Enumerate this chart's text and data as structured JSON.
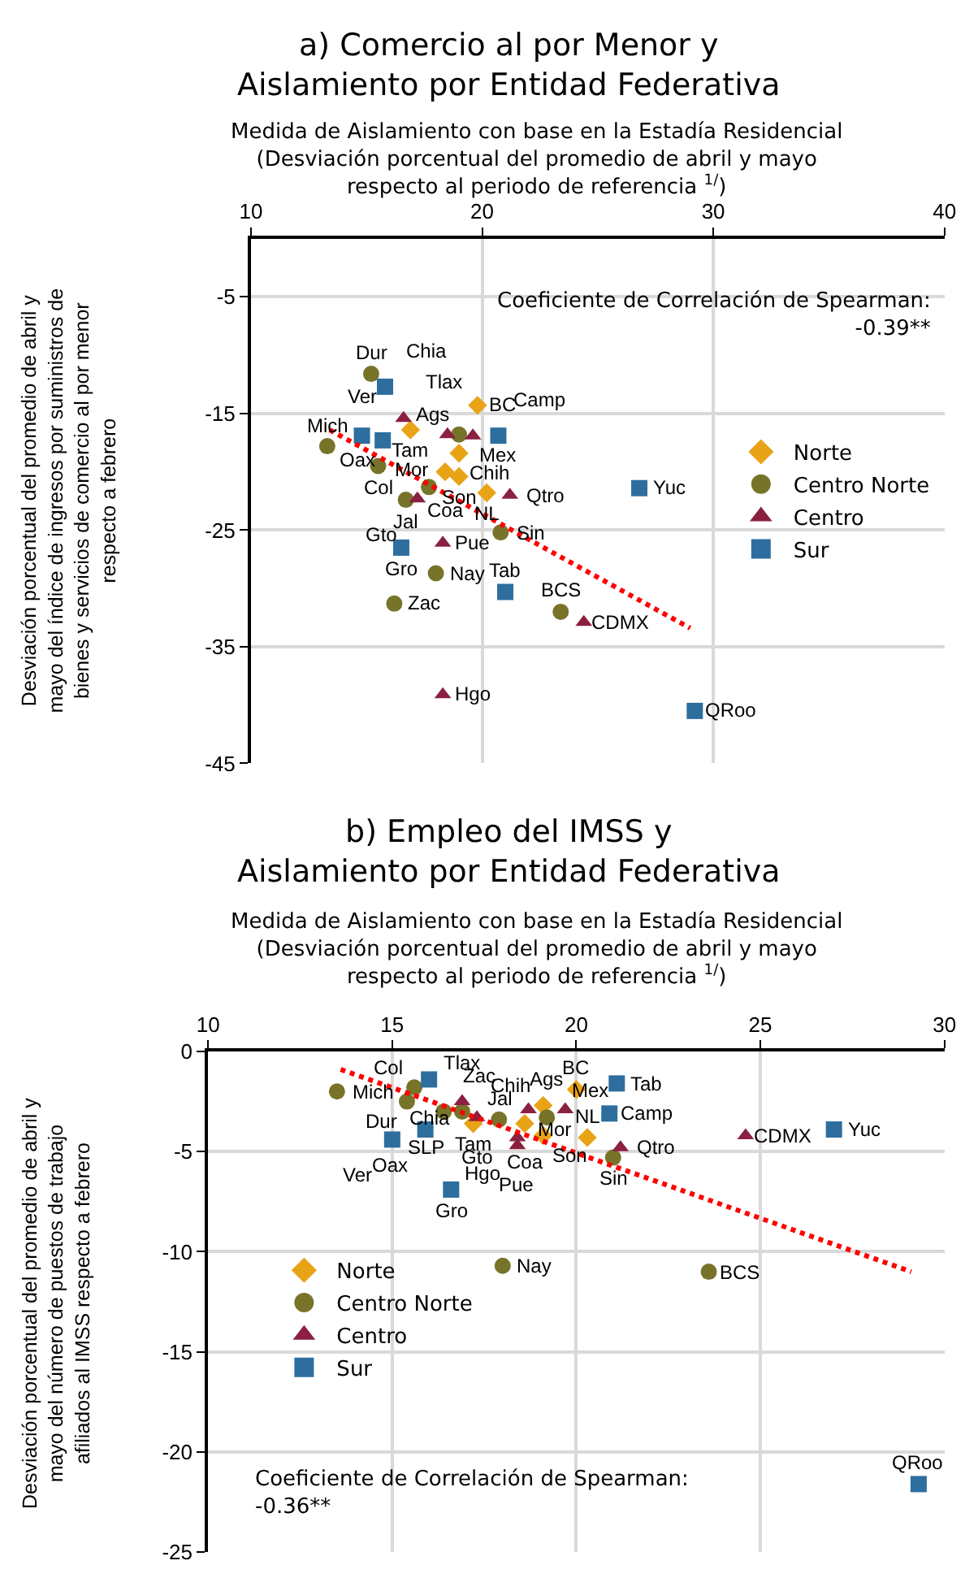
{
  "chart_data": [
    {
      "type": "scatter",
      "title": "a) Comercio al por Menor y\nAislamiento por Entidad Federativa",
      "xlabel": "Medida de Aislamiento con base en la Estadía Residencial\n(Desviación porcentual del promedio de abril y mayo\nrespecto al periodo de referencia $^{1/}$)",
      "ylabel": "Desviación porcentual del promedio de abril y\nmayo del índice de ingresos por suministros de\nbienes y servicios de comercio al por menor\nrespecto a febrero",
      "xlim": [
        10,
        40
      ],
      "xticks": [
        10,
        20,
        30,
        40
      ],
      "ylim": [
        -45,
        0
      ],
      "yticks": [
        -5,
        -15,
        -25,
        -35,
        -45
      ],
      "grid": true,
      "legend": "right",
      "series": [
        {
          "name": "Norte",
          "color": "#e8a317",
          "marker": "diamond",
          "x": [
            19.8,
            16.9,
            19.0,
            18.4,
            19.0,
            20.2
          ],
          "values": [
            -14.3,
            -16.4,
            -18.4,
            -20.0,
            -20.4,
            -21.8
          ]
        },
        {
          "name": "Centro Norte",
          "color": "#77742a",
          "marker": "circle",
          "x": [
            15.2,
            19.0,
            13.3,
            15.5,
            16.7,
            17.7,
            20.8,
            18.0,
            16.2,
            23.4
          ],
          "values": [
            -11.6,
            -16.8,
            -17.8,
            -19.5,
            -22.4,
            -21.3,
            -25.2,
            -28.7,
            -31.3,
            -32.0
          ]
        },
        {
          "name": "Centro",
          "color": "#8b2040",
          "marker": "triangle",
          "x": [
            16.6,
            18.5,
            19.6,
            17.2,
            21.2,
            18.3,
            18.3,
            24.4
          ],
          "values": [
            -15.4,
            -16.8,
            -16.9,
            -22.3,
            -22.0,
            -26.1,
            -39.1,
            -32.9
          ]
        },
        {
          "name": "Sur",
          "color": "#2e6e9e",
          "marker": "square",
          "x": [
            15.8,
            15.7,
            14.8,
            20.7,
            16.5,
            21.0,
            26.8,
            29.2
          ],
          "values": [
            -12.7,
            -17.3,
            -16.9,
            -16.9,
            -26.5,
            -30.3,
            -21.4,
            -40.5
          ]
        },
        {
          "type": "line",
          "color": "#ff0000",
          "line_style": "dotted",
          "marker": "none",
          "x": [
            13.4,
            29.0
          ],
          "values": [
            -16.4,
            -33.4
          ]
        }
      ],
      "annotations": [
        "Coeficiente de Correlación de Spearman:\n-0.39**",
        {
          "text": "BC",
          "x": 19.8,
          "y": -14.3
        },
        {
          "text": "Tam",
          "x": 16.9,
          "y": -16.4
        },
        {
          "text": "Chih",
          "x": 19.0,
          "y": -18.4
        },
        {
          "text": "Coa",
          "x": 18.4,
          "y": -20.0
        },
        {
          "text": "Son",
          "x": 19.0,
          "y": -20.4
        },
        {
          "text": "NL",
          "x": 20.2,
          "y": -21.8
        },
        {
          "text": "Dur",
          "x": 15.2,
          "y": -11.6
        },
        {
          "text": "Ags",
          "x": 19.0,
          "y": -16.8
        },
        {
          "text": "Mich",
          "x": 13.3,
          "y": -17.8
        },
        {
          "text": "Col",
          "x": 15.5,
          "y": -19.5
        },
        {
          "text": "Jal",
          "x": 16.7,
          "y": -22.4
        },
        {
          "text": "Sin",
          "x": 20.8,
          "y": -25.2
        },
        {
          "text": "Nay",
          "x": 18.0,
          "y": -28.7
        },
        {
          "text": "Zac",
          "x": 16.2,
          "y": -31.3
        },
        {
          "text": "BCS",
          "x": 23.4,
          "y": -32.0
        },
        {
          "text": "Tlax",
          "x": 16.6,
          "y": -15.4
        },
        {
          "text": "Mor",
          "x": 18.5,
          "y": -16.8
        },
        {
          "text": "Mex",
          "x": 19.6,
          "y": -16.9
        },
        {
          "text": "Gto",
          "x": 17.2,
          "y": -22.3
        },
        {
          "text": "Qtro",
          "x": 21.2,
          "y": -22.0
        },
        {
          "text": "Pue",
          "x": 18.3,
          "y": -26.1
        },
        {
          "text": "Hgo",
          "x": 18.3,
          "y": -39.1
        },
        {
          "text": "CDMX",
          "x": 24.4,
          "y": -32.9
        },
        {
          "text": "Chia",
          "x": 15.8,
          "y": -12.7
        },
        {
          "text": "Oax",
          "x": 15.7,
          "y": -17.3
        },
        {
          "text": "Ver",
          "x": 14.8,
          "y": -16.9
        },
        {
          "text": "Camp",
          "x": 20.7,
          "y": -16.9
        },
        {
          "text": "Gro",
          "x": 16.5,
          "y": -26.5
        },
        {
          "text": "Tab",
          "x": 21.0,
          "y": -30.3
        },
        {
          "text": "Yuc",
          "x": 26.8,
          "y": -21.4
        },
        {
          "text": "QRoo",
          "x": 29.2,
          "y": -40.5
        }
      ]
    },
    {
      "type": "scatter",
      "title": "b) Empleo del IMSS y\nAislamiento por Entidad Federativa",
      "xlabel": "Medida de Aislamiento con base en la Estadía Residencial\n(Desviación porcentual del promedio de abril y mayo\nrespecto al periodo de referencia $^{1/}$)",
      "ylabel": "Desviación porcentual del promedio de abril y\nmayo del número de puestos de trabajo\nafiliados al IMSS respecto a febrero",
      "xlim": [
        10,
        30
      ],
      "xticks": [
        10,
        15,
        20,
        25,
        30
      ],
      "ylim": [
        -25,
        0
      ],
      "yticks": [
        0,
        -5,
        -10,
        -15,
        -20,
        -25
      ],
      "grid": true,
      "legend": "bottom left",
      "series": [
        {
          "name": "Norte",
          "color": "#e8a317",
          "marker": "diamond",
          "x": [
            20.0,
            19.1,
            17.2,
            18.6,
            19.1,
            20.3
          ],
          "values": [
            -1.9,
            -2.7,
            -3.6,
            -3.6,
            -4.2,
            -4.3
          ]
        },
        {
          "name": "Centro Norte",
          "color": "#77742a",
          "marker": "circle",
          "x": [
            13.5,
            15.6,
            15.4,
            16.4,
            16.9,
            17.9,
            19.2,
            21.0,
            18.0,
            23.6
          ],
          "values": [
            -2.0,
            -1.8,
            -2.5,
            -3.0,
            -3.0,
            -3.4,
            -3.3,
            -5.3,
            -10.7,
            -11.0
          ]
        },
        {
          "name": "Centro",
          "color": "#8b2040",
          "marker": "triangle",
          "x": [
            16.9,
            17.3,
            18.7,
            19.7,
            18.4,
            18.4,
            21.2,
            24.6
          ],
          "values": [
            -2.5,
            -3.3,
            -2.9,
            -2.9,
            -4.3,
            -4.7,
            -4.8,
            -4.2
          ]
        },
        {
          "name": "Sur",
          "color": "#2e6e9e",
          "marker": "square",
          "x": [
            16.0,
            15.9,
            15.0,
            16.6,
            21.1,
            20.9,
            27.0,
            29.3
          ],
          "values": [
            -1.4,
            -3.9,
            -4.4,
            -6.9,
            -1.6,
            -3.1,
            -3.9,
            -21.6
          ]
        },
        {
          "type": "line",
          "color": "#ff0000",
          "line_style": "dotted",
          "marker": "none",
          "x": [
            13.6,
            29.1
          ],
          "values": [
            -0.9,
            -11.0
          ]
        }
      ],
      "annotations": [
        "Coeficiente de Correlación de Spearman:\n-0.36**",
        {
          "text": "BC",
          "x": 20.0,
          "y": -1.9
        },
        {
          "text": "Chih",
          "x": 19.1,
          "y": -2.7
        },
        {
          "text": "Tam",
          "x": 17.2,
          "y": -3.6
        },
        {
          "text": "Coa",
          "x": 18.6,
          "y": -3.6
        },
        {
          "text": "Son",
          "x": 19.1,
          "y": -4.2
        },
        {
          "text": "NL",
          "x": 20.3,
          "y": -4.3
        },
        {
          "text": "Mich",
          "x": 13.5,
          "y": -2.0
        },
        {
          "text": "Col",
          "x": 15.6,
          "y": -1.8
        },
        {
          "text": "Dur",
          "x": 15.4,
          "y": -2.5
        },
        {
          "text": "Zac",
          "x": 16.4,
          "y": -3.0
        },
        {
          "text": "SLP",
          "x": 16.9,
          "y": -3.0
        },
        {
          "text": "Jal",
          "x": 17.9,
          "y": -3.4
        },
        {
          "text": "Ags",
          "x": 19.2,
          "y": -3.3
        },
        {
          "text": "Sin",
          "x": 21.0,
          "y": -5.3
        },
        {
          "text": "Nay",
          "x": 18.0,
          "y": -10.7
        },
        {
          "text": "BCS",
          "x": 23.6,
          "y": -11.0
        },
        {
          "text": "Tlax",
          "x": 16.9,
          "y": -2.5
        },
        {
          "text": "Gto",
          "x": 17.3,
          "y": -3.3
        },
        {
          "text": "Mor",
          "x": 18.7,
          "y": -2.9
        },
        {
          "text": "Mex",
          "x": 19.7,
          "y": -2.9
        },
        {
          "text": "Hgo",
          "x": 18.4,
          "y": -4.3
        },
        {
          "text": "Pue",
          "x": 18.4,
          "y": -4.7
        },
        {
          "text": "Qtro",
          "x": 21.2,
          "y": -4.8
        },
        {
          "text": "CDMX",
          "x": 24.6,
          "y": -4.2
        },
        {
          "text": "Chia",
          "x": 16.0,
          "y": -1.4
        },
        {
          "text": "Oax",
          "x": 15.9,
          "y": -3.9
        },
        {
          "text": "Ver",
          "x": 15.0,
          "y": -4.4
        },
        {
          "text": "Gro",
          "x": 16.6,
          "y": -6.9
        },
        {
          "text": "Tab",
          "x": 21.1,
          "y": -1.6
        },
        {
          "text": "Camp",
          "x": 20.9,
          "y": -3.1
        },
        {
          "text": "Yuc",
          "x": 27.0,
          "y": -3.9
        },
        {
          "text": "QRoo",
          "x": 29.3,
          "y": -21.6
        }
      ]
    }
  ]
}
